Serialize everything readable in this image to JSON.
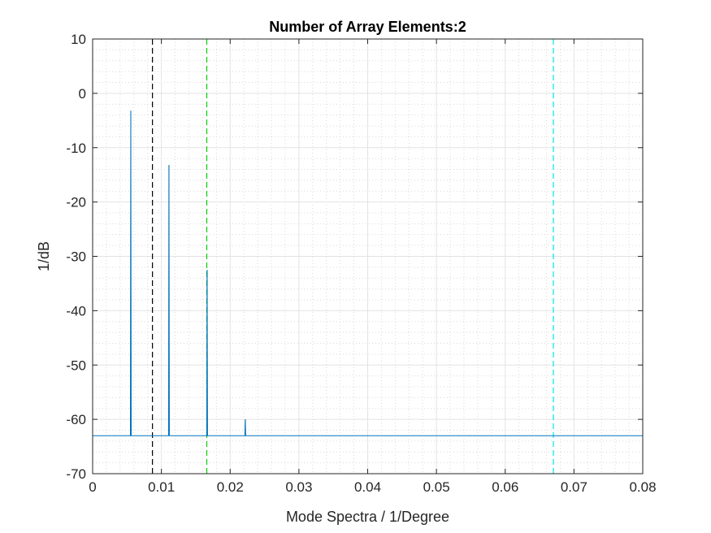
{
  "chart_data": {
    "type": "line",
    "title": "Number of Array Elements:2",
    "xlabel": "Mode Spectra / 1/Degree",
    "ylabel": "1/dB",
    "xlim": [
      0,
      0.08
    ],
    "ylim": [
      -70,
      10
    ],
    "grid": true,
    "minor_grid": true,
    "x_ticks": [
      0,
      0.01,
      0.02,
      0.03,
      0.04,
      0.05,
      0.06,
      0.07,
      0.08
    ],
    "x_tick_labels": [
      "0",
      "0.01",
      "0.02",
      "0.03",
      "0.04",
      "0.05",
      "0.06",
      "0.07",
      "0.08"
    ],
    "y_ticks": [
      10,
      0,
      -10,
      -20,
      -30,
      -40,
      -50,
      -60,
      -70
    ],
    "y_tick_labels": [
      "10",
      "0",
      "-10",
      "-20",
      "-30",
      "-40",
      "-50",
      "-60",
      "-70"
    ],
    "series": [
      {
        "color": "#0072BD",
        "baseline": -63,
        "peaks": [
          {
            "x": 0.00555,
            "y": -3.2
          },
          {
            "x": 0.0111,
            "y": -13.2
          },
          {
            "x": 0.01665,
            "y": -32.5
          },
          {
            "x": 0.0222,
            "y": -60.0
          }
        ]
      }
    ],
    "vertical_lines": [
      {
        "x": 0.0087,
        "color": "#000000",
        "style": "dashed"
      },
      {
        "x": 0.0166,
        "color": "#00CC00",
        "style": "dashed"
      },
      {
        "x": 0.067,
        "color": "#00E5E5",
        "style": "dashed"
      }
    ]
  }
}
